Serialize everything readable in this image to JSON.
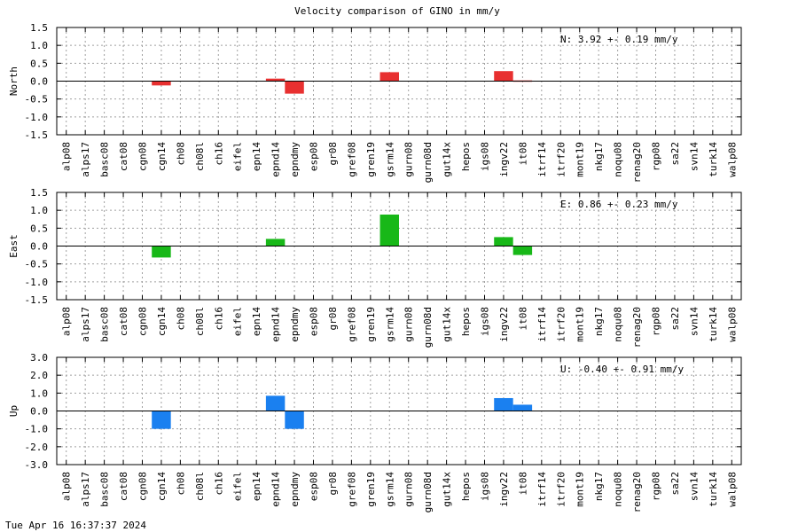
{
  "title": "Velocity comparison of GINO in mm/y",
  "footer": "Tue Apr 16 16:37:37 2024",
  "chart_data": [
    {
      "type": "bar",
      "ylabel": "North",
      "ylim": [
        -1.5,
        1.5
      ],
      "yticks": [
        "1.5",
        "1.0",
        "0.5",
        "0.0",
        "-0.5",
        "-1.0",
        "-1.5"
      ],
      "grid": true,
      "color": "#e83030",
      "stat": "N:   3.92 +-  0.19 mm/y",
      "categories": [
        "alp08",
        "alps17",
        "basc08",
        "cat08",
        "cgn08",
        "cgn14",
        "ch08",
        "ch08l",
        "ch16",
        "eifel",
        "epn14",
        "epnd14",
        "epndmy",
        "esp08",
        "gr08",
        "gref08",
        "gren19",
        "gsrm14",
        "gurn08",
        "gurn08d",
        "gut14x",
        "hepos",
        "igs08",
        "ingv22",
        "it08",
        "itrf14",
        "itrf20",
        "mont19",
        "nkg17",
        "noqu08",
        "renag20",
        "rgp08",
        "sa22",
        "svn14",
        "turk14",
        "walp08"
      ],
      "values": [
        0,
        0,
        0,
        0,
        0,
        -0.12,
        0,
        0,
        0,
        0,
        0,
        0.07,
        -0.35,
        0,
        0,
        0,
        0,
        0.25,
        0,
        0,
        0,
        0,
        0,
        0.28,
        0.02,
        0,
        0,
        0,
        0,
        0,
        0,
        0,
        0,
        0,
        0,
        0
      ]
    },
    {
      "type": "bar",
      "ylabel": "East",
      "ylim": [
        -1.5,
        1.5
      ],
      "yticks": [
        "1.5",
        "1.0",
        "0.5",
        "0.0",
        "-0.5",
        "-1.0",
        "-1.5"
      ],
      "grid": true,
      "color": "#18b818",
      "stat": "E:   0.86 +-  0.23 mm/y",
      "categories": [
        "alp08",
        "alps17",
        "basc08",
        "cat08",
        "cgn08",
        "cgn14",
        "ch08",
        "ch08l",
        "ch16",
        "eifel",
        "epn14",
        "epnd14",
        "epndmy",
        "esp08",
        "gr08",
        "gref08",
        "gren19",
        "gsrm14",
        "gurn08",
        "gurn08d",
        "gut14x",
        "hepos",
        "igs08",
        "ingv22",
        "it08",
        "itrf14",
        "itrf20",
        "mont19",
        "nkg17",
        "noqu08",
        "renag20",
        "rgp08",
        "sa22",
        "svn14",
        "turk14",
        "walp08"
      ],
      "values": [
        0,
        0,
        0,
        0,
        0,
        -0.32,
        0,
        0,
        0,
        0,
        0,
        0.2,
        0,
        0,
        0,
        0,
        0,
        0.88,
        0,
        0,
        0,
        0,
        0,
        0.25,
        -0.25,
        0,
        0,
        0,
        0,
        0,
        0,
        0,
        0,
        0,
        0,
        0
      ]
    },
    {
      "type": "bar",
      "ylabel": "Up",
      "ylim": [
        -3.0,
        3.0
      ],
      "yticks": [
        "3.0",
        "2.0",
        "1.0",
        "0.0",
        "-1.0",
        "-2.0",
        "-3.0"
      ],
      "grid": true,
      "color": "#1a80f0",
      "stat": "U:  -0.40 +-  0.91 mm/y",
      "categories": [
        "alp08",
        "alps17",
        "basc08",
        "cat08",
        "cgn08",
        "cgn14",
        "ch08",
        "ch08l",
        "ch16",
        "eifel",
        "epn14",
        "epnd14",
        "epndmy",
        "esp08",
        "gr08",
        "gref08",
        "gren19",
        "gsrm14",
        "gurn08",
        "gurn08d",
        "gut14x",
        "hepos",
        "igs08",
        "ingv22",
        "it08",
        "itrf14",
        "itrf20",
        "mont19",
        "nkg17",
        "noqu08",
        "renag20",
        "rgp08",
        "sa22",
        "svn14",
        "turk14",
        "walp08"
      ],
      "values": [
        0,
        0,
        0,
        0,
        0,
        -1.0,
        0,
        0,
        0,
        0,
        0,
        0.85,
        -1.0,
        0,
        0,
        0,
        0,
        0,
        0,
        0,
        0,
        0,
        0,
        0.72,
        0.35,
        0,
        0,
        0,
        0,
        0,
        0,
        0,
        0,
        0,
        0,
        0
      ]
    }
  ]
}
